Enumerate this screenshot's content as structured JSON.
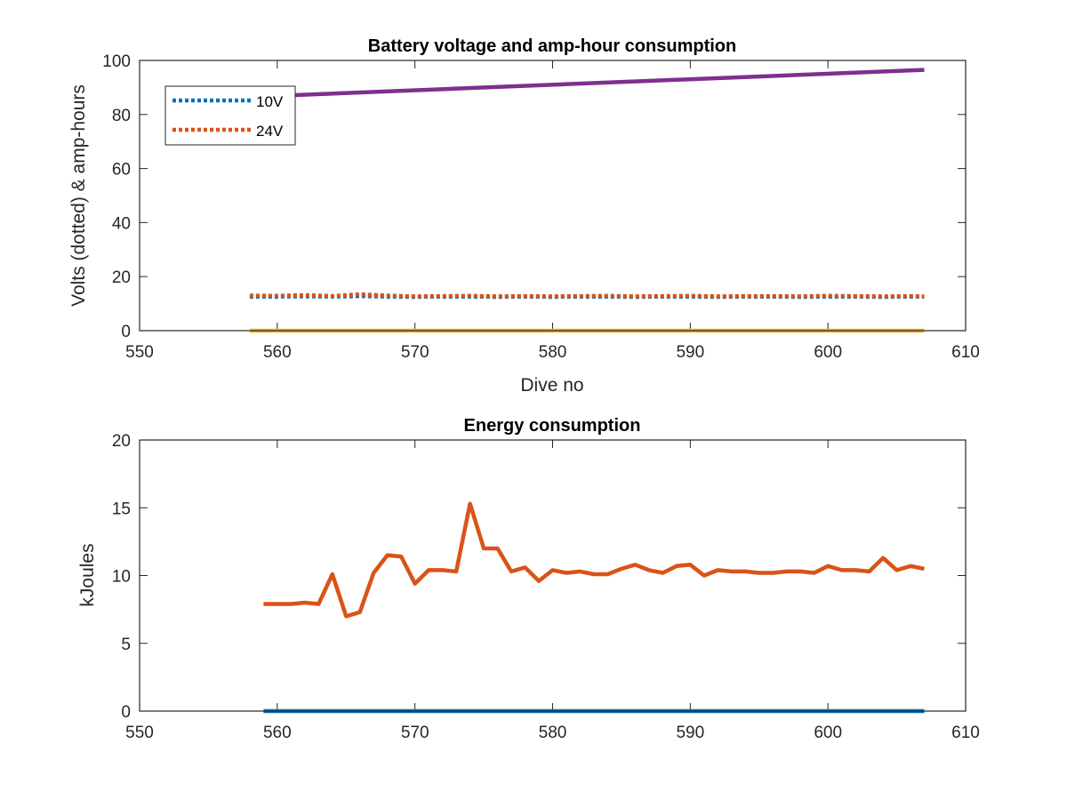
{
  "chart_data": [
    {
      "type": "line",
      "title": "Battery voltage and amp-hour consumption",
      "xlabel": "Dive no",
      "ylabel": "Volts (dotted) & amp-hours",
      "xlim": [
        550,
        610
      ],
      "ylim": [
        0,
        100
      ],
      "xticks": [
        550,
        560,
        570,
        580,
        590,
        600,
        610
      ],
      "yticks": [
        0,
        20,
        40,
        60,
        80,
        100
      ],
      "grid": false,
      "legend_position": "top-left",
      "series": [
        {
          "name": "10V",
          "style": "dotted",
          "color": "#0072BD",
          "x": [
            558,
            560,
            562,
            564,
            566,
            568,
            570,
            572,
            574,
            576,
            578,
            580,
            582,
            584,
            586,
            588,
            590,
            592,
            594,
            596,
            598,
            600,
            602,
            604,
            606,
            607
          ],
          "y": [
            12.6,
            12.6,
            12.7,
            12.6,
            12.8,
            12.6,
            12.5,
            12.6,
            12.6,
            12.5,
            12.6,
            12.5,
            12.6,
            12.6,
            12.5,
            12.6,
            12.6,
            12.5,
            12.6,
            12.6,
            12.5,
            12.6,
            12.6,
            12.5,
            12.6,
            12.6
          ]
        },
        {
          "name": "24V",
          "style": "dotted",
          "color": "#D95319",
          "x": [
            558,
            560,
            562,
            564,
            566,
            568,
            570,
            572,
            574,
            576,
            578,
            580,
            582,
            584,
            586,
            588,
            590,
            592,
            594,
            596,
            598,
            600,
            602,
            604,
            606,
            607
          ],
          "y": [
            13.0,
            12.9,
            13.2,
            12.8,
            13.5,
            13.0,
            12.7,
            12.8,
            12.9,
            12.7,
            12.8,
            12.7,
            12.8,
            12.9,
            12.7,
            12.8,
            12.9,
            12.7,
            12.8,
            12.8,
            12.7,
            12.9,
            12.8,
            12.7,
            12.8,
            12.7
          ]
        },
        {
          "name": "",
          "style": "solid",
          "color": "#7E2F8E",
          "x": [
            558,
            607
          ],
          "y": [
            86.5,
            96.5
          ]
        },
        {
          "name": "",
          "style": "solid",
          "color": "#EDB120",
          "x": [
            558,
            607
          ],
          "y": [
            0,
            0
          ]
        }
      ]
    },
    {
      "type": "line",
      "title": "Energy consumption",
      "xlabel": "",
      "ylabel": "kJoules",
      "xlim": [
        550,
        610
      ],
      "ylim": [
        0,
        20
      ],
      "xticks": [
        550,
        560,
        570,
        580,
        590,
        600,
        610
      ],
      "yticks": [
        0,
        5,
        10,
        15,
        20
      ],
      "grid": false,
      "series": [
        {
          "name": "",
          "style": "solid",
          "color": "#D95319",
          "x": [
            559,
            560,
            561,
            562,
            563,
            564,
            565,
            566,
            567,
            568,
            569,
            570,
            571,
            572,
            573,
            574,
            575,
            576,
            577,
            578,
            579,
            580,
            581,
            582,
            583,
            584,
            585,
            586,
            587,
            588,
            589,
            590,
            591,
            592,
            593,
            594,
            595,
            596,
            597,
            598,
            599,
            600,
            601,
            602,
            603,
            604,
            605,
            606,
            607
          ],
          "y": [
            7.9,
            7.9,
            7.9,
            8.0,
            7.9,
            10.1,
            7.0,
            7.3,
            10.2,
            11.5,
            11.4,
            9.4,
            10.4,
            10.4,
            10.3,
            15.3,
            12.0,
            12.0,
            10.3,
            10.6,
            9.6,
            10.4,
            10.2,
            10.3,
            10.1,
            10.1,
            10.5,
            10.8,
            10.4,
            10.2,
            10.7,
            10.8,
            10.0,
            10.4,
            10.3,
            10.3,
            10.2,
            10.2,
            10.3,
            10.3,
            10.2,
            10.7,
            10.4,
            10.4,
            10.3,
            11.3,
            10.4,
            10.7,
            10.5
          ]
        },
        {
          "name": "",
          "style": "solid",
          "color": "#0072BD",
          "x": [
            559,
            607
          ],
          "y": [
            0,
            0
          ]
        }
      ]
    }
  ]
}
